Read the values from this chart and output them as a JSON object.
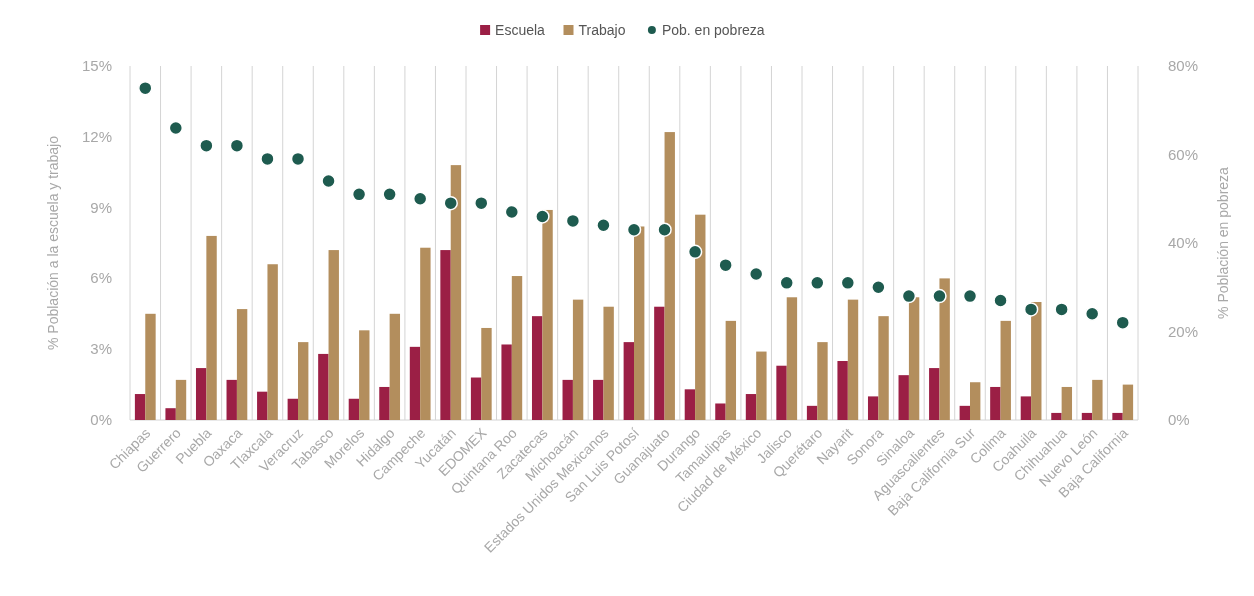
{
  "chart_data": {
    "type": "bar",
    "categories": [
      "Chiapas",
      "Guerrero",
      "Puebla",
      "Oaxaca",
      "Tlaxcala",
      "Veracruz",
      "Tabasco",
      "Morelos",
      "Hidalgo",
      "Campeche",
      "Yucatán",
      "EDOMEX",
      "Quintana Roo",
      "Zacatecas",
      "Michoacán",
      "Estados Unidos Mexicanos",
      "San Luis Potosí",
      "Guanajuato",
      "Durango",
      "Tamaulipas",
      "Ciudad de México",
      "Jalisco",
      "Querétaro",
      "Nayarit",
      "Sonora",
      "Sinaloa",
      "Aguascalientes",
      "Baja California Sur",
      "Colima",
      "Coahuila",
      "Chihuahua",
      "Nuevo León",
      "Baja California"
    ],
    "series": [
      {
        "name": "Escuela",
        "color": "#9b1f45",
        "values": [
          1.1,
          0.5,
          2.2,
          1.7,
          1.2,
          0.9,
          2.8,
          0.9,
          1.4,
          3.1,
          7.2,
          1.8,
          3.2,
          4.4,
          1.7,
          1.7,
          3.3,
          4.8,
          1.3,
          0.7,
          1.1,
          2.3,
          0.6,
          2.5,
          1.0,
          1.9,
          2.2,
          0.6,
          1.4,
          1.0,
          0.3,
          0.3,
          0.3
        ]
      },
      {
        "name": "Trabajo",
        "color": "#b38e5d",
        "values": [
          4.5,
          1.7,
          7.8,
          4.7,
          6.6,
          3.3,
          7.2,
          3.8,
          4.5,
          7.3,
          10.8,
          3.9,
          6.1,
          8.9,
          5.1,
          4.8,
          8.2,
          12.2,
          8.7,
          4.2,
          2.9,
          5.2,
          3.3,
          5.1,
          4.4,
          5.2,
          6.0,
          1.6,
          4.2,
          5.0,
          1.4,
          1.7,
          1.5
        ]
      },
      {
        "name": "Pob. en pobreza",
        "type": "scatter",
        "axis": "y2",
        "color": "#1e5b4f",
        "values": [
          75,
          66,
          62,
          62,
          59,
          59,
          54,
          51,
          51,
          50,
          49,
          49,
          47,
          46,
          45,
          44,
          43,
          43,
          38,
          35,
          33,
          31,
          31,
          31,
          30,
          28,
          28,
          28,
          27,
          25,
          25,
          24,
          22
        ]
      }
    ],
    "ylabel": "% Población a la escuela y trabajo",
    "y2label": "% Población en pobreza",
    "ylim": [
      0,
      15
    ],
    "yticks": [
      {
        "value": 0,
        "label": "0%"
      },
      {
        "value": 3,
        "label": "3%"
      },
      {
        "value": 6,
        "label": "6%"
      },
      {
        "value": 9,
        "label": "9%"
      },
      {
        "value": 12,
        "label": "12%"
      },
      {
        "value": 15,
        "label": "15%"
      }
    ],
    "y2lim": [
      0,
      80
    ],
    "y2ticks": [
      {
        "value": 0,
        "label": "0%"
      },
      {
        "value": 20,
        "label": "20%"
      },
      {
        "value": 40,
        "label": "40%"
      },
      {
        "value": 60,
        "label": "60%"
      },
      {
        "value": 80,
        "label": "80%"
      }
    ],
    "grid": "x",
    "legend": "top",
    "marker": "circle"
  }
}
